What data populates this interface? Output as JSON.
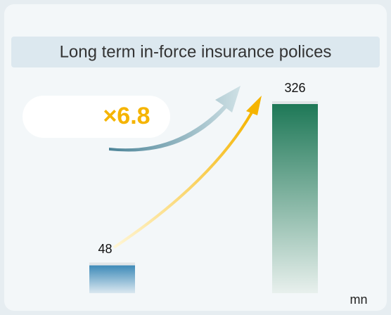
{
  "chart_data": {
    "type": "bar",
    "title": "Long term in-force insurance polices",
    "values": [
      48,
      326
    ],
    "colors": [
      "#3d8ab8",
      "#1e7857"
    ],
    "annotation": "×6.8",
    "unit": "mn"
  }
}
